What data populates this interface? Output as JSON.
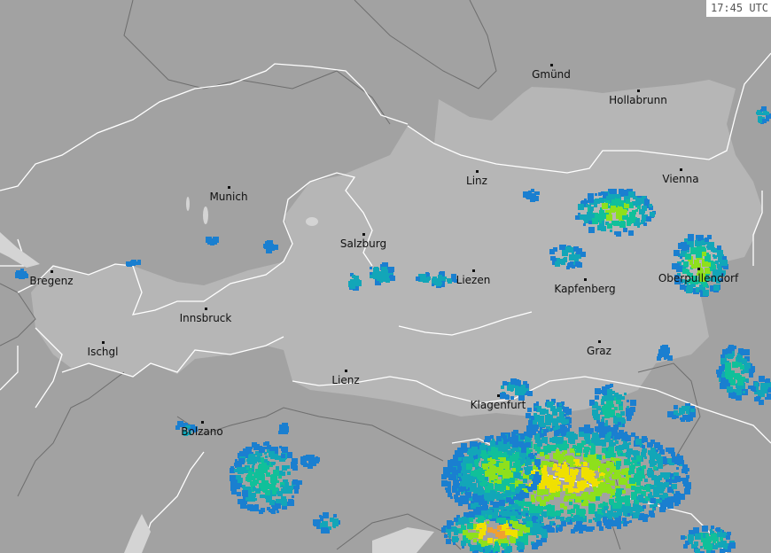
{
  "timestamp": "17:45 UTC",
  "colors": {
    "background": "#a2a2a2",
    "austria": "#b6b6b6",
    "country_border": "#ffffff",
    "region_border": "#6e6e6e",
    "radar_levels": [
      "#1a7fd0",
      "#12a6b8",
      "#10c09a",
      "#8ee01c",
      "#f0e000",
      "#f0a030"
    ]
  },
  "cities": [
    {
      "name": "Gmünd"
    },
    {
      "name": "Hollabrunn"
    },
    {
      "name": "Linz"
    },
    {
      "name": "Vienna"
    },
    {
      "name": "Munich"
    },
    {
      "name": "Salzburg"
    },
    {
      "name": "Liezen"
    },
    {
      "name": "Kapfenberg"
    },
    {
      "name": "Oberpullendorf"
    },
    {
      "name": "Bregenz"
    },
    {
      "name": "Innsbruck"
    },
    {
      "name": "Ischgl"
    },
    {
      "name": "Graz"
    },
    {
      "name": "Lienz"
    },
    {
      "name": "Klagenfurt"
    },
    {
      "name": "Bolzano"
    }
  ]
}
